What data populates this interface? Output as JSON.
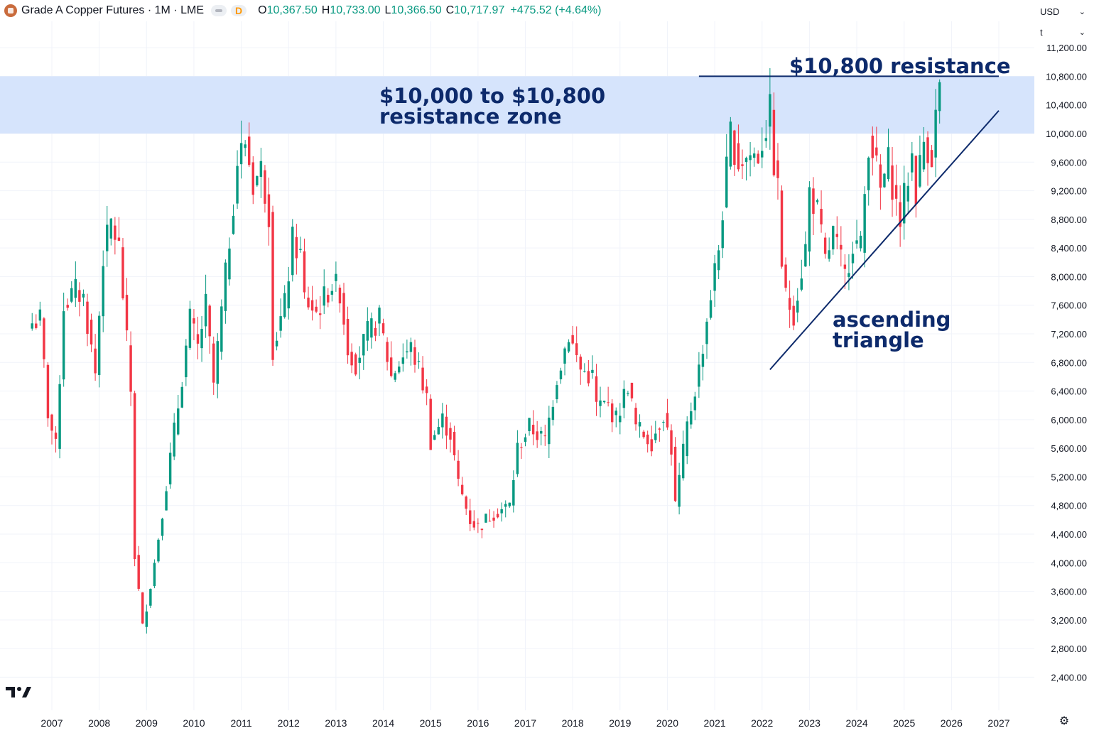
{
  "header": {
    "title": "Grade A Copper Futures · 1M · LME",
    "delayed_badge": "D",
    "open_label": "O",
    "open": "10,367.50",
    "high_label": "H",
    "high": "10,733.00",
    "low_label": "L",
    "low": "10,366.50",
    "close_label": "C",
    "close": "10,717.97",
    "change": "+475.52 (+4.64%)"
  },
  "currency_select": "USD",
  "unit_select": "t",
  "colors": {
    "up": "#089981",
    "down": "#f23645",
    "zone": "#d6e4fc",
    "annotation": "#0d2a6b",
    "grid": "#f0f3fa"
  },
  "chart_data": {
    "type": "candlestick",
    "interval": "1M",
    "x_range": [
      "2006-07",
      "2027-06"
    ],
    "ylim": [
      2200,
      11400
    ],
    "y_ticks": [
      2400,
      2800,
      3200,
      3600,
      4000,
      4400,
      4800,
      5200,
      5600,
      6000,
      6400,
      6800,
      7200,
      7600,
      8000,
      8400,
      8800,
      9200,
      9600,
      10000,
      10400,
      10800,
      11200
    ],
    "y_tick_labels": [
      "2,400.00",
      "2,800.00",
      "3,200.00",
      "3,600.00",
      "4,000.00",
      "4,400.00",
      "4,800.00",
      "5,200.00",
      "5,600.00",
      "6,000.00",
      "6,400.00",
      "6,800.00",
      "7,200.00",
      "7,600.00",
      "8,000.00",
      "8,400.00",
      "8,800.00",
      "9,200.00",
      "9,600.00",
      "10,000.00",
      "10,400.00",
      "10,800.00",
      "11,200.00"
    ],
    "x_ticks": [
      "2007",
      "2008",
      "2009",
      "2010",
      "2011",
      "2012",
      "2013",
      "2014",
      "2015",
      "2016",
      "2017",
      "2018",
      "2019",
      "2020",
      "2021",
      "2022",
      "2023",
      "2024",
      "2025",
      "2026",
      "2027"
    ],
    "close_anchors": [
      [
        "2006-08",
        7350
      ],
      [
        "2006-10",
        7400
      ],
      [
        "2006-12",
        6100
      ],
      [
        "2007-02",
        5600
      ],
      [
        "2007-04",
        7600
      ],
      [
        "2007-07",
        7800
      ],
      [
        "2007-09",
        7700
      ],
      [
        "2007-12",
        6650
      ],
      [
        "2008-02",
        8300
      ],
      [
        "2008-04",
        8750
      ],
      [
        "2008-06",
        8400
      ],
      [
        "2008-07",
        7750
      ],
      [
        "2008-09",
        6400
      ],
      [
        "2008-10",
        4100
      ],
      [
        "2008-12",
        3100
      ],
      [
        "2009-03",
        4000
      ],
      [
        "2009-06",
        5100
      ],
      [
        "2009-09",
        6200
      ],
      [
        "2009-12",
        7400
      ],
      [
        "2010-02",
        7000
      ],
      [
        "2010-04",
        7600
      ],
      [
        "2010-06",
        6500
      ],
      [
        "2010-09",
        8000
      ],
      [
        "2010-12",
        9600
      ],
      [
        "2011-02",
        9900
      ],
      [
        "2011-04",
        9300
      ],
      [
        "2011-06",
        9500
      ],
      [
        "2011-08",
        8900
      ],
      [
        "2011-09",
        7000
      ],
      [
        "2011-12",
        7600
      ],
      [
        "2012-02",
        8500
      ],
      [
        "2012-04",
        8300
      ],
      [
        "2012-05",
        7700
      ],
      [
        "2012-08",
        7500
      ],
      [
        "2012-10",
        7700
      ],
      [
        "2012-12",
        7900
      ],
      [
        "2013-02",
        7800
      ],
      [
        "2013-04",
        7000
      ],
      [
        "2013-06",
        6800
      ],
      [
        "2013-09",
        7200
      ],
      [
        "2013-12",
        7400
      ],
      [
        "2014-03",
        6600
      ],
      [
        "2014-06",
        6900
      ],
      [
        "2014-08",
        7000
      ],
      [
        "2014-10",
        6700
      ],
      [
        "2014-12",
        6300
      ],
      [
        "2015-01",
        5700
      ],
      [
        "2015-04",
        6000
      ],
      [
        "2015-06",
        5800
      ],
      [
        "2015-08",
        5100
      ],
      [
        "2015-11",
        4600
      ],
      [
        "2016-01",
        4500
      ],
      [
        "2016-05",
        4700
      ],
      [
        "2016-09",
        4800
      ],
      [
        "2016-11",
        5600
      ],
      [
        "2017-02",
        5900
      ],
      [
        "2017-06",
        5700
      ],
      [
        "2017-09",
        6600
      ],
      [
        "2017-12",
        7200
      ],
      [
        "2018-03",
        6700
      ],
      [
        "2018-06",
        6600
      ],
      [
        "2018-07",
        6200
      ],
      [
        "2018-10",
        6200
      ],
      [
        "2018-12",
        6000
      ],
      [
        "2019-03",
        6500
      ],
      [
        "2019-05",
        5900
      ],
      [
        "2019-09",
        5700
      ],
      [
        "2019-12",
        6100
      ],
      [
        "2020-02",
        5600
      ],
      [
        "2020-03",
        4800
      ],
      [
        "2020-06",
        5900
      ],
      [
        "2020-09",
        6700
      ],
      [
        "2020-12",
        7750
      ],
      [
        "2021-02",
        8400
      ],
      [
        "2021-05",
        10000
      ],
      [
        "2021-07",
        9600
      ],
      [
        "2021-10",
        9700
      ],
      [
        "2021-12",
        9700
      ],
      [
        "2022-03",
        10300
      ],
      [
        "2022-04",
        9600
      ],
      [
        "2022-05",
        9200
      ],
      [
        "2022-06",
        8200
      ],
      [
        "2022-07",
        7700
      ],
      [
        "2022-09",
        7500
      ],
      [
        "2022-12",
        8400
      ],
      [
        "2023-01",
        9200
      ],
      [
        "2023-03",
        8900
      ],
      [
        "2023-05",
        8200
      ],
      [
        "2023-07",
        8600
      ],
      [
        "2023-09",
        8200
      ],
      [
        "2023-10",
        8000
      ],
      [
        "2023-12",
        8500
      ],
      [
        "2024-02",
        8400
      ],
      [
        "2024-04",
        9900
      ],
      [
        "2024-05",
        9800
      ],
      [
        "2024-07",
        9200
      ],
      [
        "2024-09",
        9600
      ],
      [
        "2024-11",
        9000
      ],
      [
        "2024-12",
        8800
      ],
      [
        "2025-03",
        9700
      ],
      [
        "2025-04",
        9200
      ],
      [
        "2025-06",
        9900
      ],
      [
        "2025-08",
        9700
      ],
      [
        "2025-09",
        10240
      ],
      [
        "2025-10",
        10718
      ]
    ]
  },
  "annotations": {
    "zone_label_line1": "$10,000 to $10,800",
    "zone_label_line2": "resistance zone",
    "zone_low": 10000,
    "zone_high": 10800,
    "resistance_label": "$10,800 resistance",
    "resistance_level": 10800,
    "resistance_from": "2020-09",
    "resistance_to": "2027-01",
    "triangle_label_line1": "ascending",
    "triangle_label_line2": "triangle",
    "trendline_start": [
      "2022-03",
      6700
    ],
    "trendline_end": [
      "2027-01",
      10320
    ]
  }
}
